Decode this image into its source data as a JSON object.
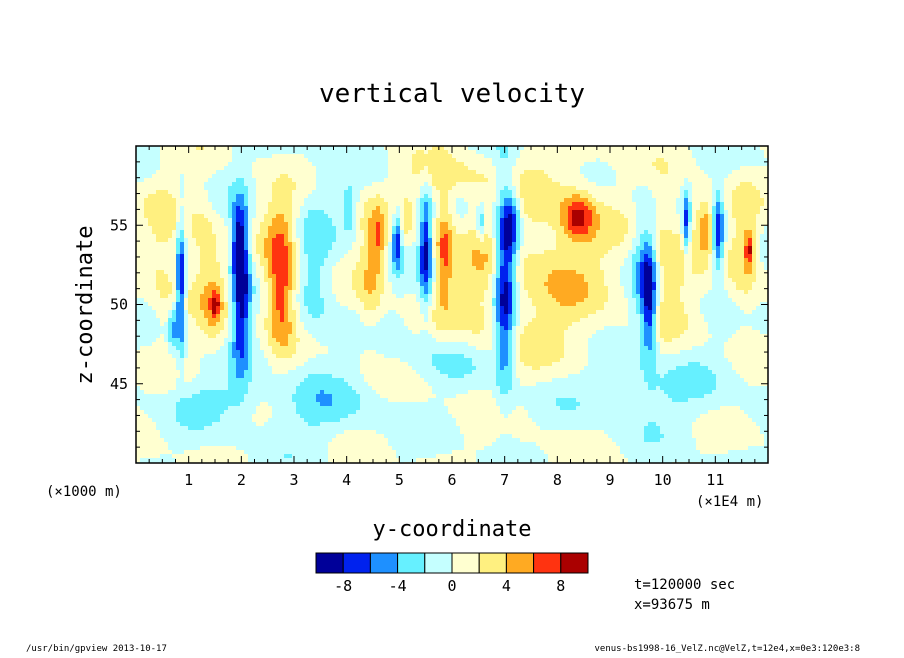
{
  "chart_data": {
    "type": "heatmap",
    "title": "vertical velocity",
    "xlabel": "y-coordinate",
    "ylabel": "z-coordinate",
    "x_unit_left": "(×1000 m)",
    "x_unit_right": "(×1E4 m)",
    "xlim": [
      0,
      12
    ],
    "ylim": [
      40,
      60
    ],
    "xticks": [
      1,
      2,
      3,
      4,
      5,
      6,
      7,
      8,
      9,
      10,
      11
    ],
    "yticks": [
      45,
      50,
      55
    ],
    "levels": [
      -10,
      -8,
      -6,
      -4,
      -2,
      0,
      2,
      4,
      6,
      8,
      10
    ],
    "colorbar_labels": [
      "-8",
      "-4",
      "0",
      "4",
      "8"
    ],
    "colors": [
      "#000099",
      "#0022ee",
      "#1e90ff",
      "#66f0ff",
      "#c5ffff",
      "#ffffd0",
      "#fff080",
      "#ffaa22",
      "#ff3310",
      "#aa0000"
    ],
    "features": [
      {
        "x": 0.85,
        "z": 51.0,
        "w": -8.5,
        "rx": 0.06,
        "rz": 3.0
      },
      {
        "x": 0.7,
        "z": 48.5,
        "w": -5.0,
        "rx": 0.06,
        "rz": 1.0
      },
      {
        "x": 0.55,
        "z": 53.0,
        "w": 3.0,
        "rx": 0.25,
        "rz": 3.0
      },
      {
        "x": 1.25,
        "z": 53.5,
        "w": 3.0,
        "rx": 0.2,
        "rz": 3.0
      },
      {
        "x": 1.5,
        "z": 50.0,
        "w": 3.5,
        "rx": 0.15,
        "rz": 2.0
      },
      {
        "x": 1.5,
        "z": 50.0,
        "w": 6.0,
        "rx": 0.05,
        "rz": 0.4
      },
      {
        "x": 2.0,
        "z": 51.0,
        "w": -9.5,
        "rx": 0.12,
        "rz": 3.5
      },
      {
        "x": 1.95,
        "z": 54.0,
        "w": -6.0,
        "rx": 0.1,
        "rz": 1.5
      },
      {
        "x": 2.75,
        "z": 51.0,
        "w": 8.5,
        "rx": 0.2,
        "rz": 2.5
      },
      {
        "x": 2.75,
        "z": 55.0,
        "w": 3.0,
        "rx": 0.25,
        "rz": 1.5
      },
      {
        "x": 3.4,
        "z": 52.0,
        "w": -3.0,
        "rx": 0.25,
        "rz": 3.5
      },
      {
        "x": 4.45,
        "z": 52.0,
        "w": 3.5,
        "rx": 0.18,
        "rz": 3.0
      },
      {
        "x": 4.6,
        "z": 54.0,
        "w": 4.0,
        "rx": 0.1,
        "rz": 1.5
      },
      {
        "x": 4.05,
        "z": 56.0,
        "w": -4.0,
        "rx": 0.1,
        "rz": 1.0
      },
      {
        "x": 4.95,
        "z": 54.0,
        "w": -8.0,
        "rx": 0.06,
        "rz": 1.2
      },
      {
        "x": 5.15,
        "z": 55.5,
        "w": 2.5,
        "rx": 0.08,
        "rz": 1.0
      },
      {
        "x": 5.5,
        "z": 53.5,
        "w": -8.0,
        "rx": 0.08,
        "rz": 2.5
      },
      {
        "x": 5.85,
        "z": 53.5,
        "w": 6.0,
        "rx": 0.12,
        "rz": 2.5
      },
      {
        "x": 6.55,
        "z": 55.0,
        "w": -4.5,
        "rx": 0.05,
        "rz": 0.8
      },
      {
        "x": 6.5,
        "z": 51.0,
        "w": 2.5,
        "rx": 0.4,
        "rz": 3.5
      },
      {
        "x": 7.0,
        "z": 51.5,
        "w": -10.0,
        "rx": 0.14,
        "rz": 4.5
      },
      {
        "x": 7.15,
        "z": 55.0,
        "w": -6.0,
        "rx": 0.12,
        "rz": 1.5
      },
      {
        "x": 8.0,
        "z": 52.5,
        "w": 3.5,
        "rx": 0.8,
        "rz": 5.0
      },
      {
        "x": 8.4,
        "z": 55.5,
        "w": 6.5,
        "rx": 0.2,
        "rz": 1.0
      },
      {
        "x": 9.75,
        "z": 50.5,
        "w": -9.0,
        "rx": 0.1,
        "rz": 2.5
      },
      {
        "x": 9.6,
        "z": 52.0,
        "w": -4.0,
        "rx": 0.15,
        "rz": 3.0
      },
      {
        "x": 10.1,
        "z": 52.5,
        "w": 3.5,
        "rx": 0.3,
        "rz": 3.0
      },
      {
        "x": 10.45,
        "z": 55.0,
        "w": -6.5,
        "rx": 0.05,
        "rz": 1.5
      },
      {
        "x": 10.8,
        "z": 55.0,
        "w": 6.0,
        "rx": 0.15,
        "rz": 1.2
      },
      {
        "x": 11.05,
        "z": 54.5,
        "w": -9.0,
        "rx": 0.08,
        "rz": 1.8
      },
      {
        "x": 11.55,
        "z": 53.0,
        "w": 3.5,
        "rx": 0.2,
        "rz": 3.0
      },
      {
        "x": 11.65,
        "z": 53.5,
        "w": 6.0,
        "rx": 0.06,
        "rz": 0.8
      },
      {
        "x": 5.85,
        "z": 58.0,
        "w": 2.5,
        "rx": 0.6,
        "rz": 1.0
      },
      {
        "x": 3.5,
        "z": 43.5,
        "w": -2.5,
        "rx": 0.8,
        "rz": 1.5
      },
      {
        "x": 9.5,
        "z": 44.5,
        "w": -2.5,
        "rx": 1.2,
        "rz": 1.5
      },
      {
        "x": 1.5,
        "z": 44.0,
        "w": -2.5,
        "rx": 0.6,
        "rz": 1.0
      },
      {
        "x": 6.0,
        "z": 46.5,
        "w": -2.0,
        "rx": 0.6,
        "rz": 1.0
      }
    ]
  },
  "info": {
    "time": "t=120000 sec",
    "xpos": "x=93675 m"
  },
  "footer": {
    "left": "/usr/bin/gpview  2013-10-17",
    "right": "venus-bs1998-16_VelZ.nc@VelZ,t=12e4,x=0e3:120e3:8"
  }
}
